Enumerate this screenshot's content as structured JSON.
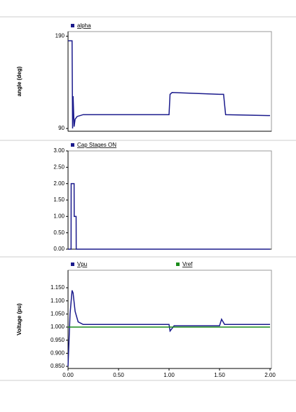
{
  "chart_data": [
    {
      "type": "line",
      "ylabel": "angle (deg)",
      "x": [
        0,
        0.04,
        0.045,
        0.05,
        0.06,
        0.07,
        0.09,
        0.15,
        1.0,
        1.01,
        1.03,
        1.5,
        1.54,
        1.56,
        2.0
      ],
      "series": [
        {
          "name": "alpha",
          "color": "#1a1a8c",
          "values": [
            185,
            185,
            90,
            125,
            92,
            100,
            103,
            105,
            105,
            127,
            129,
            127,
            127,
            105,
            104
          ]
        }
      ],
      "xlim": [
        0,
        2
      ],
      "ylim": [
        87,
        195
      ],
      "yticks": [
        90,
        190
      ]
    },
    {
      "type": "line",
      "x": [
        0,
        0.03,
        0.031,
        0.06,
        0.061,
        0.08,
        0.081,
        2.0
      ],
      "series": [
        {
          "name": "Cap Stages ON",
          "color": "#1a1a8c",
          "values": [
            0,
            0,
            2,
            2,
            1,
            1,
            0,
            0
          ]
        }
      ],
      "xlim": [
        0,
        2
      ],
      "ylim": [
        0,
        3
      ],
      "yticks": [
        {
          "value": 0,
          "label": "0.00"
        },
        {
          "value": 0.5,
          "label": "0.50"
        },
        {
          "value": 1,
          "label": "1.00"
        },
        {
          "value": 1.5,
          "label": "1.50"
        },
        {
          "value": 2,
          "label": "2.00"
        },
        {
          "value": 2.5,
          "label": "2.50"
        },
        {
          "value": 3,
          "label": "3.00"
        }
      ]
    },
    {
      "type": "line",
      "ylabel": "Voltage (pu)",
      "x": [
        0,
        0.02,
        0.04,
        0.05,
        0.07,
        0.1,
        0.15,
        1.0,
        1.01,
        1.05,
        1.5,
        1.52,
        1.55,
        2.0
      ],
      "series": [
        {
          "name": "Vpu",
          "color": "#1a1a8c",
          "values": [
            0.85,
            1.05,
            1.14,
            1.13,
            1.06,
            1.02,
            1.01,
            1.01,
            0.985,
            1.005,
            1.005,
            1.03,
            1.01,
            1.01
          ]
        },
        {
          "name": "Vref",
          "color": "#1a8c1a",
          "values": [
            1.0,
            1.0,
            1.0,
            1.0,
            1.0,
            1.0,
            1.0,
            1.0,
            1.0,
            1.0,
            1.0,
            1.0,
            1.0,
            1.0
          ]
        }
      ],
      "xlim": [
        0,
        2
      ],
      "ylim": [
        0.842,
        1.217
      ],
      "yticks": [
        {
          "value": 0.85,
          "label": "0.850"
        },
        {
          "value": 0.9,
          "label": "0.900"
        },
        {
          "value": 0.95,
          "label": "0.950"
        },
        {
          "value": 1.0,
          "label": "1.000"
        },
        {
          "value": 1.05,
          "label": "1.050"
        },
        {
          "value": 1.1,
          "label": "1.100"
        },
        {
          "value": 1.15,
          "label": "1.150"
        }
      ],
      "xticks": [
        {
          "value": 0,
          "label": "0.00"
        },
        {
          "value": 0.5,
          "label": "0.50"
        },
        {
          "value": 1,
          "label": "1.00"
        },
        {
          "value": 1.5,
          "label": "1.50"
        },
        {
          "value": 2,
          "label": "2.00"
        }
      ]
    }
  ]
}
